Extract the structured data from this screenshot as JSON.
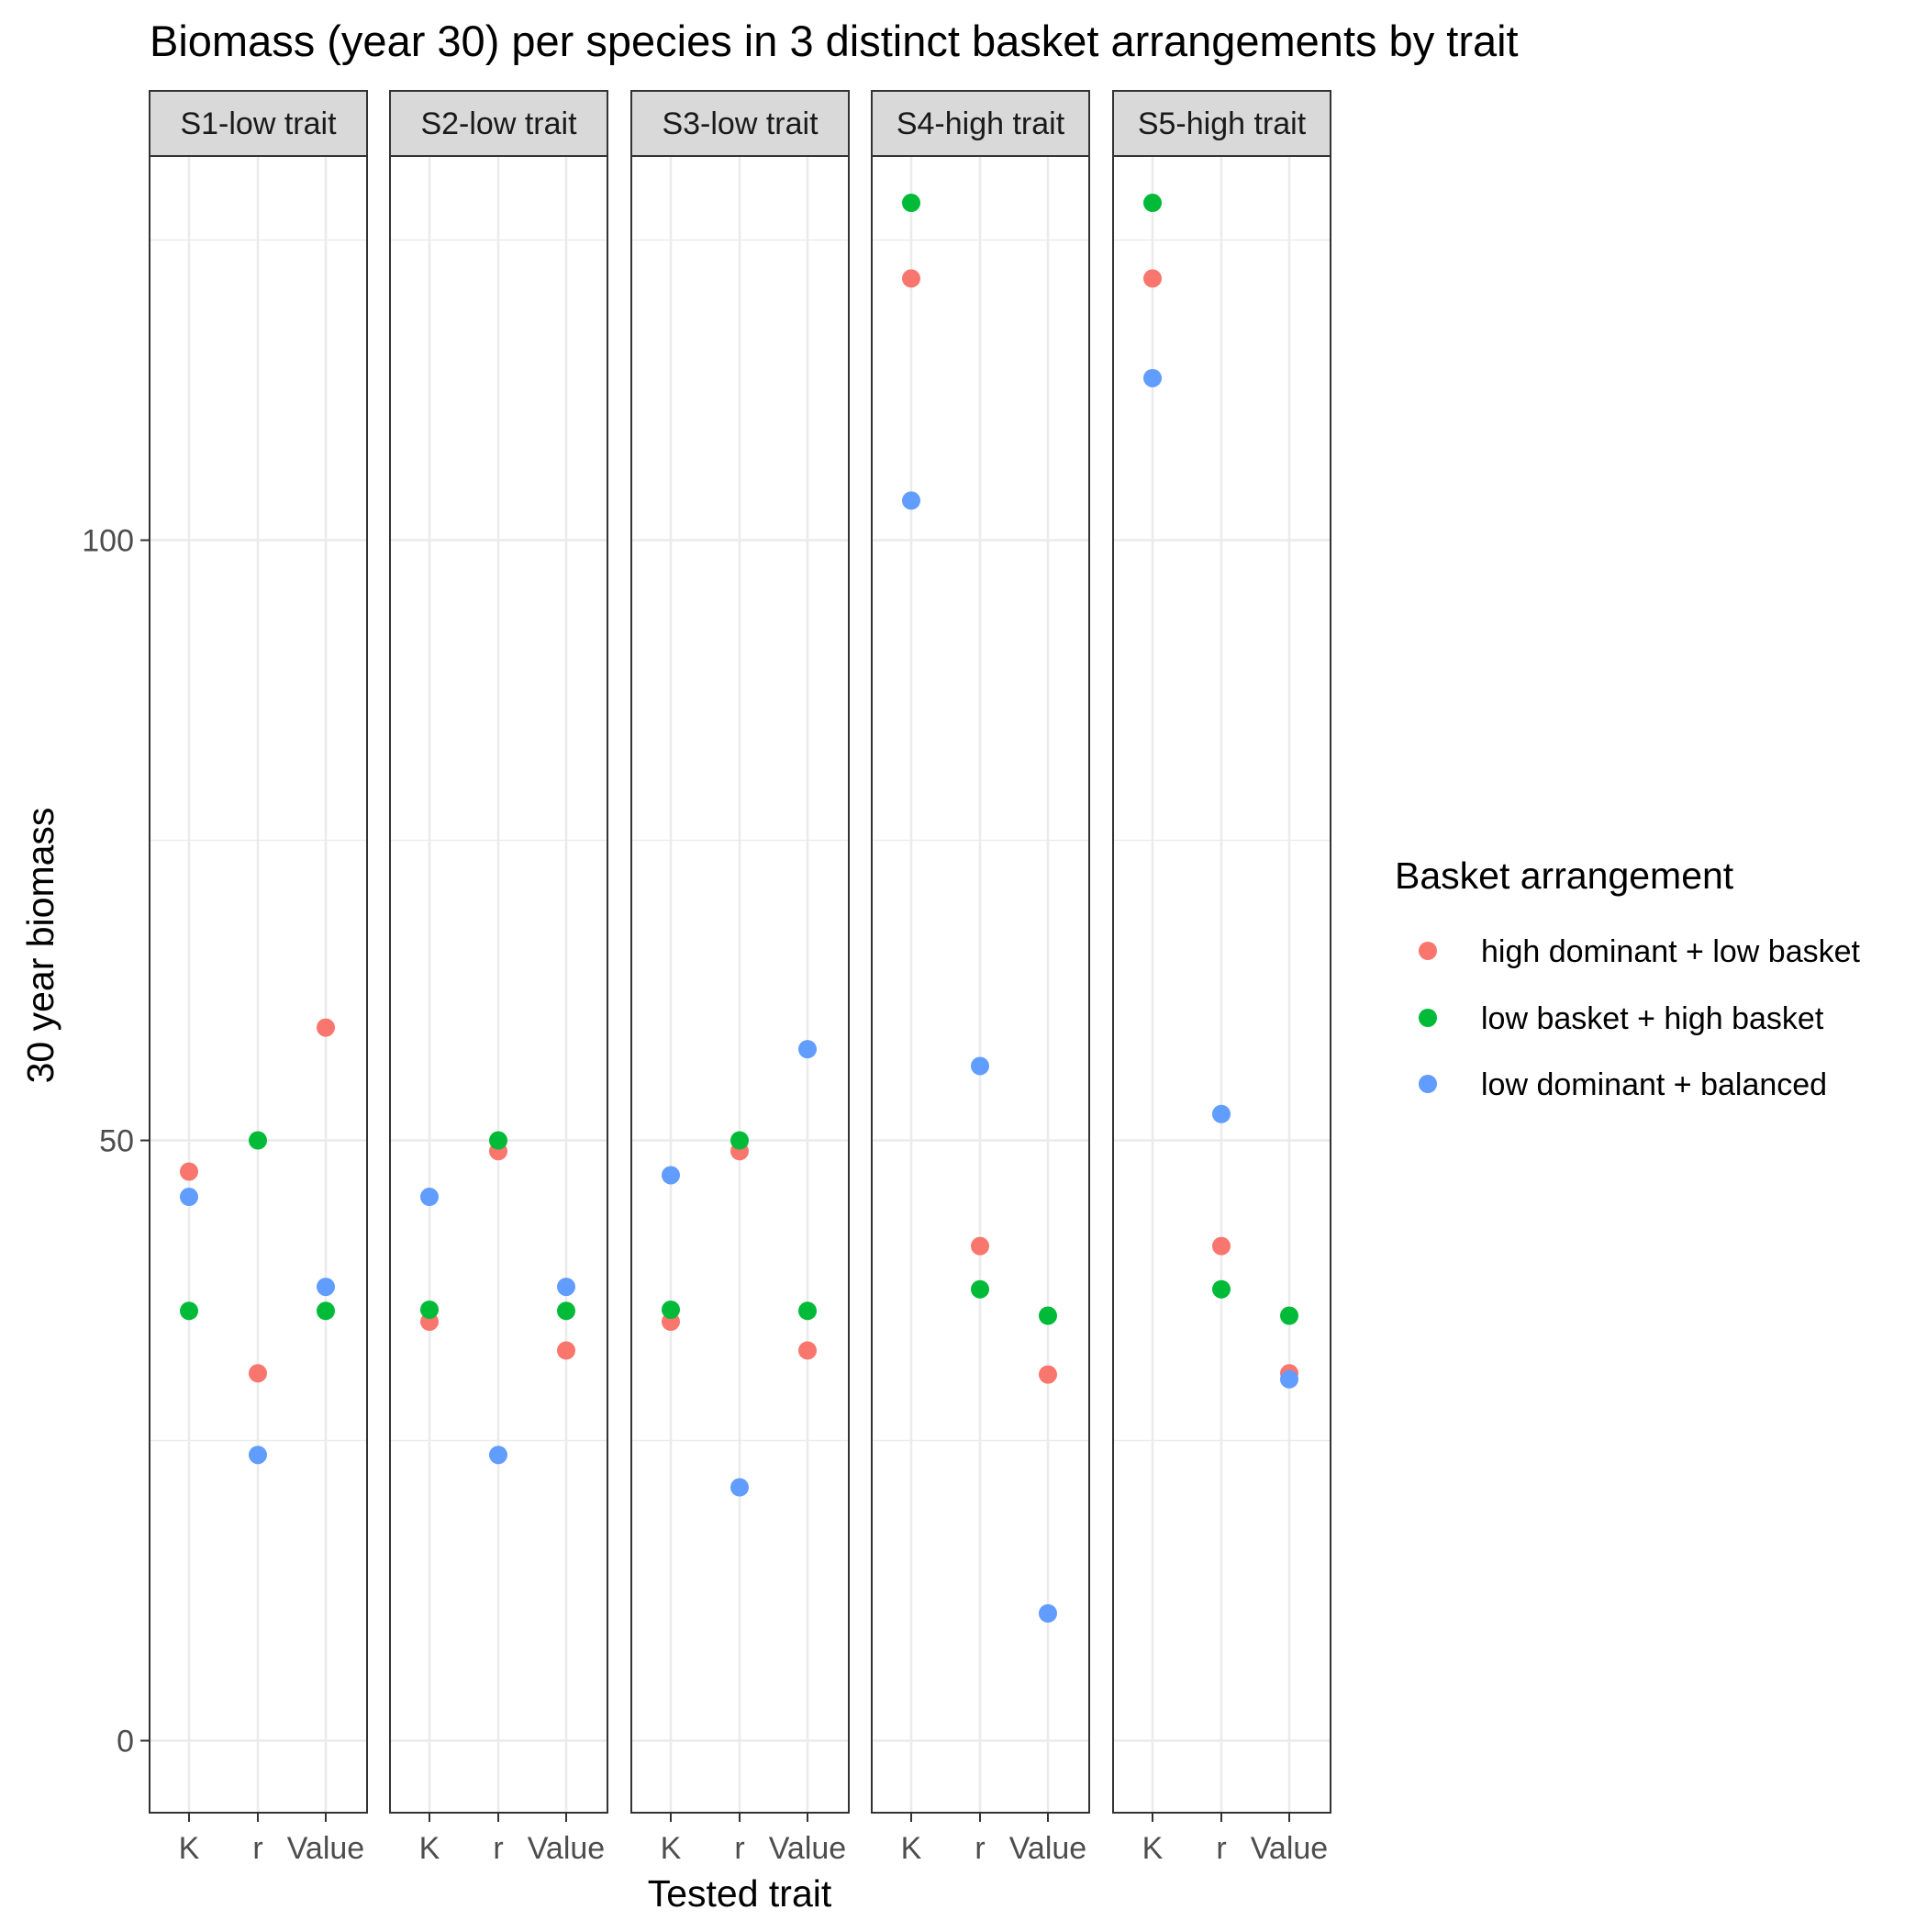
{
  "chart_data": {
    "type": "scatter",
    "title": "Biomass (year 30) per species in 3 distinct basket arrangements by trait",
    "xlabel": "Tested trait",
    "ylabel": "30 year biomass",
    "ylim": [
      -6,
      132
    ],
    "yticks": [
      0,
      50,
      100
    ],
    "grid": true,
    "legend_position": "right",
    "legend_title": "Basket arrangement",
    "categories": [
      "K",
      "r",
      "Value"
    ],
    "panels": [
      "S1-low trait",
      "S2-low trait",
      "S3-low trait",
      "S4-high trait",
      "S5-high trait"
    ],
    "series": [
      {
        "name": "high dominant + low basket",
        "color": "#F8766D",
        "values": [
          [
            47.4,
            30.6,
            59.4
          ],
          [
            34.9,
            49.1,
            32.5
          ],
          [
            34.9,
            49.1,
            32.5
          ],
          [
            121.8,
            41.2,
            30.5
          ],
          [
            121.8,
            41.2,
            30.6
          ]
        ]
      },
      {
        "name": "low basket + high basket",
        "color": "#00BA38",
        "values": [
          [
            35.8,
            50.0,
            35.8
          ],
          [
            35.9,
            50.0,
            35.8
          ],
          [
            35.9,
            50.0,
            35.8
          ],
          [
            128.1,
            37.6,
            35.4
          ],
          [
            128.1,
            37.6,
            35.4
          ]
        ]
      },
      {
        "name": "low dominant + balanced",
        "color": "#619CFF",
        "values": [
          [
            45.3,
            23.8,
            37.8
          ],
          [
            45.3,
            23.8,
            37.8
          ],
          [
            47.1,
            21.1,
            57.6
          ],
          [
            103.3,
            56.2,
            10.6
          ],
          [
            113.5,
            52.2,
            30.1
          ]
        ]
      }
    ]
  }
}
